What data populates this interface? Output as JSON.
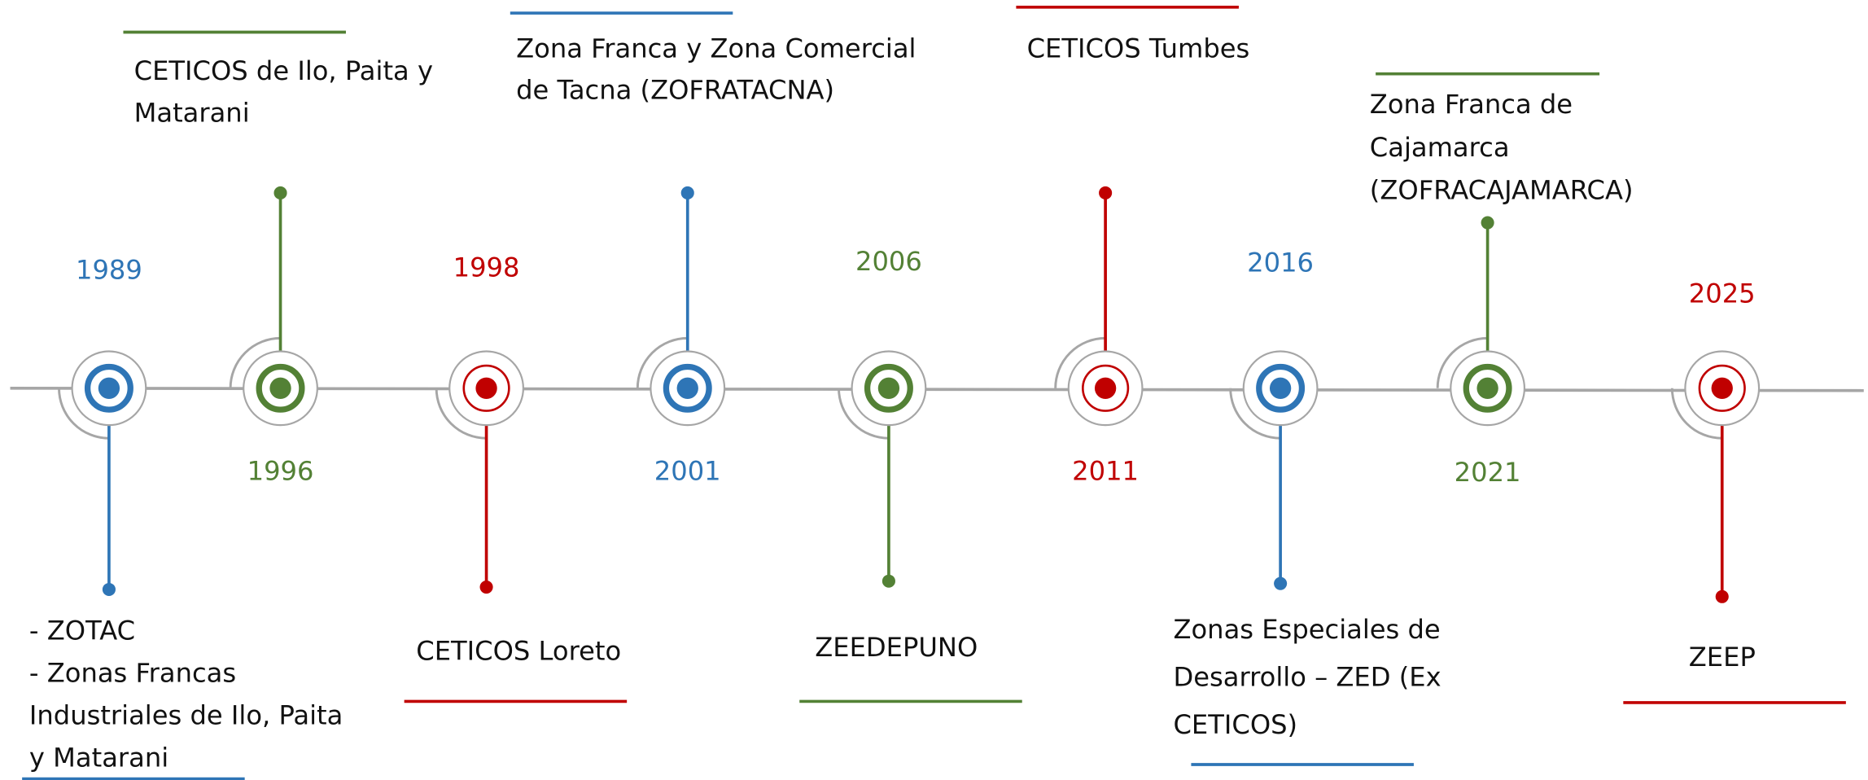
{
  "timeline": {
    "events": [
      {
        "year": "1989",
        "color": "#2e75b6",
        "label": [
          "- ZOTAC",
          "- Zonas Francas",
          "Industriales de Ilo, Paita",
          "y Matarani"
        ]
      },
      {
        "year": "1996",
        "color": "#538135",
        "label": [
          "CETICOS de Ilo, Paita y",
          "Matarani"
        ]
      },
      {
        "year": "1998",
        "color": "#c00000",
        "label": [
          "CETICOS Loreto"
        ]
      },
      {
        "year": "2001",
        "color": "#2e75b6",
        "label": [
          "Zona Franca y Zona Comercial",
          "de Tacna (ZOFRATACNA)"
        ]
      },
      {
        "year": "2006",
        "color": "#538135",
        "label": [
          "ZEEDEPUNO"
        ]
      },
      {
        "year": "2011",
        "color": "#c00000",
        "label": [
          "CETICOS Tumbes"
        ]
      },
      {
        "year": "2016",
        "color": "#2e75b6",
        "label": [
          "Zonas Especiales de",
          "Desarrollo – ZED (Ex",
          "CETICOS)"
        ]
      },
      {
        "year": "2021",
        "color": "#538135",
        "label": [
          "Zona Franca de",
          "Cajamarca",
          "(ZOFRACAJAMARCA)"
        ]
      },
      {
        "year": "2025",
        "color": "#c00000",
        "label": [
          "ZEEP"
        ]
      }
    ]
  }
}
